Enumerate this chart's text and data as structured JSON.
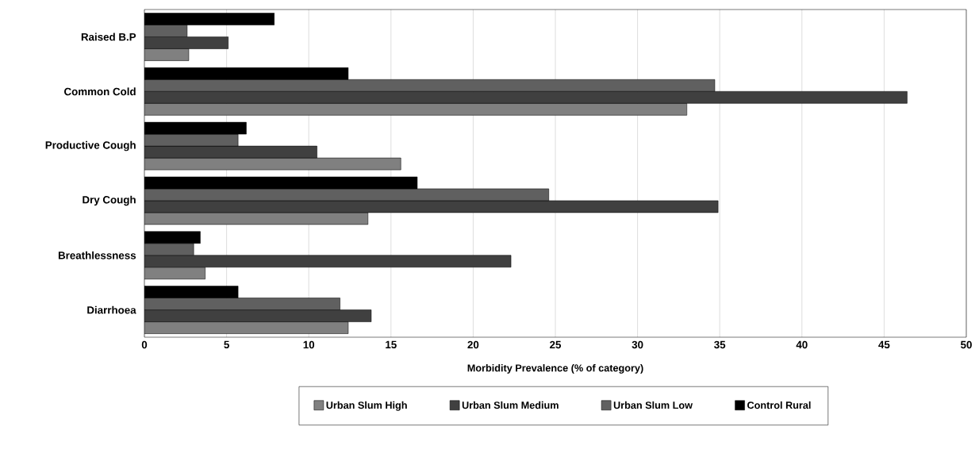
{
  "chart_data": {
    "type": "bar",
    "orientation": "horizontal",
    "xlabel": "Morbidity Prevalence (% of category)",
    "categories": [
      "Raised B.P",
      "Common Cold",
      "Productive Cough",
      "Dry Cough",
      "Breathlessness",
      "Diarrhoea"
    ],
    "series": [
      {
        "name": "Urban Slum High",
        "color": "#808080",
        "values": [
          2.7,
          33.0,
          15.6,
          13.6,
          3.7,
          12.4
        ]
      },
      {
        "name": "Urban Slum Medium",
        "color": "#404040",
        "values": [
          5.1,
          46.4,
          10.5,
          34.9,
          22.3,
          13.8
        ]
      },
      {
        "name": "Urban Slum Low",
        "color": "#606060",
        "values": [
          2.6,
          34.7,
          5.7,
          24.6,
          3.0,
          11.9
        ]
      },
      {
        "name": "Control Rural",
        "color": "#000000",
        "values": [
          7.9,
          12.4,
          6.2,
          16.6,
          3.4,
          5.7
        ]
      }
    ],
    "xlim": [
      0,
      50
    ],
    "xticks": [
      0,
      5,
      10,
      15,
      20,
      25,
      30,
      35,
      40,
      45,
      50
    ],
    "grid": "x",
    "legend": "bottom"
  }
}
